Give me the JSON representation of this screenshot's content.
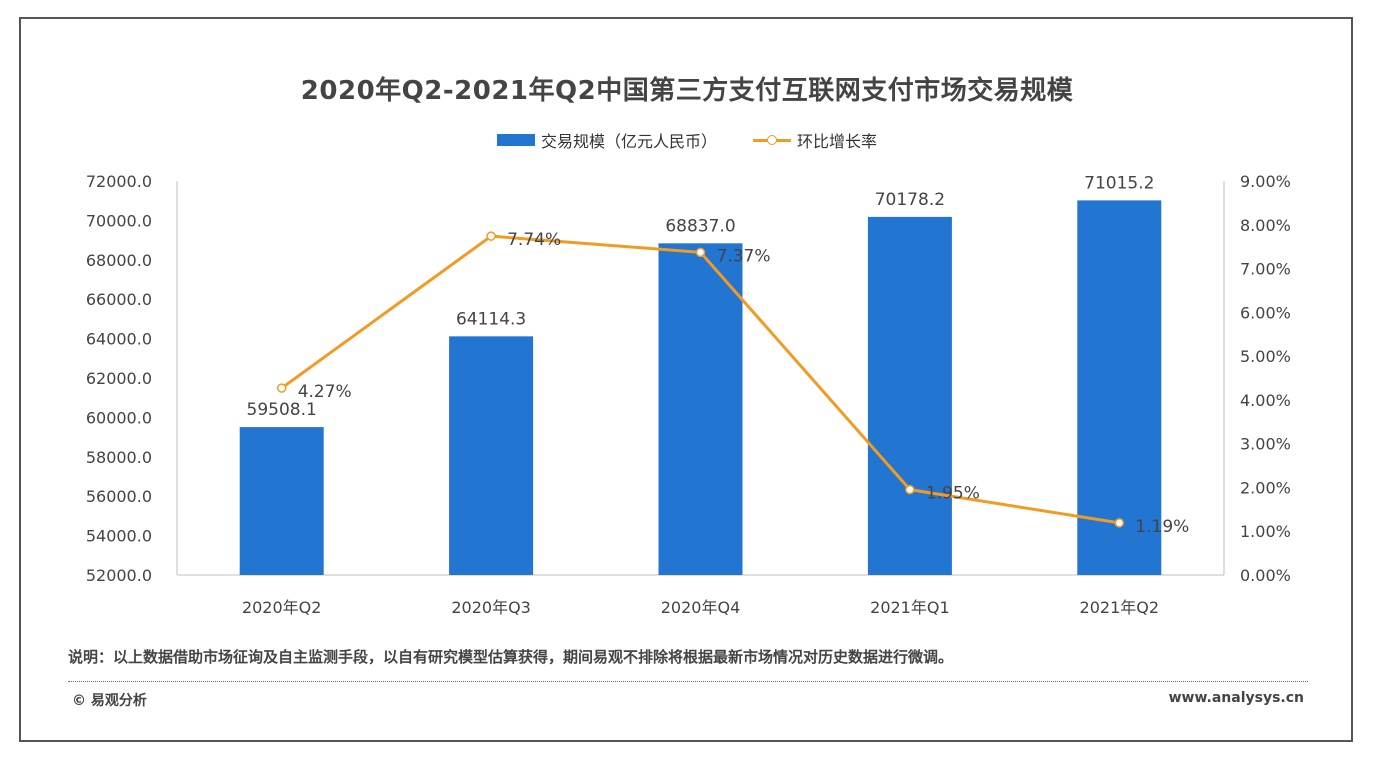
{
  "page": {
    "title": "2020年Q2-2021年Q2中国第三方支付互联网支付市场交易规模",
    "note": "说明：以上数据借助市场征询及自主监测手段，以自有研究模型估算获得，期间易观不排除将根据最新市场情况对历史数据进行微调。",
    "copyright": "© 易观分析",
    "website": "www.analysys.cn"
  },
  "chart_data": {
    "type": "bar",
    "title": "2020年Q2-2021年Q2中国第三方支付互联网支付市场交易规模",
    "categories": [
      "2020年Q2",
      "2020年Q3",
      "2020年Q4",
      "2021年Q1",
      "2021年Q2"
    ],
    "series": [
      {
        "name": "交易规模（亿元人民币）",
        "type": "bar",
        "axis": "left",
        "color": "#2275d0",
        "values": [
          59508.1,
          64114.3,
          68837.0,
          70178.2,
          71015.2
        ],
        "labels": [
          "59508.1",
          "64114.3",
          "68837.0",
          "70178.2",
          "71015.2"
        ]
      },
      {
        "name": "环比增长率",
        "type": "line",
        "axis": "right",
        "color": "#f39a22",
        "values": [
          4.27,
          7.74,
          7.37,
          1.95,
          1.19
        ],
        "labels": [
          "4.27%",
          "7.74%",
          "7.37%",
          "1.95%",
          "1.19%"
        ]
      }
    ],
    "y_left": {
      "min": 52000,
      "max": 72000,
      "ticks": [
        "52000.0",
        "54000.0",
        "56000.0",
        "58000.0",
        "60000.0",
        "62000.0",
        "64000.0",
        "66000.0",
        "68000.0",
        "70000.0",
        "72000.0"
      ]
    },
    "y_right": {
      "min": 0,
      "max": 9,
      "ticks": [
        "0.00%",
        "1.00%",
        "2.00%",
        "3.00%",
        "4.00%",
        "5.00%",
        "6.00%",
        "7.00%",
        "8.00%",
        "9.00%"
      ]
    },
    "grid": false,
    "legend_position": "top-center"
  }
}
